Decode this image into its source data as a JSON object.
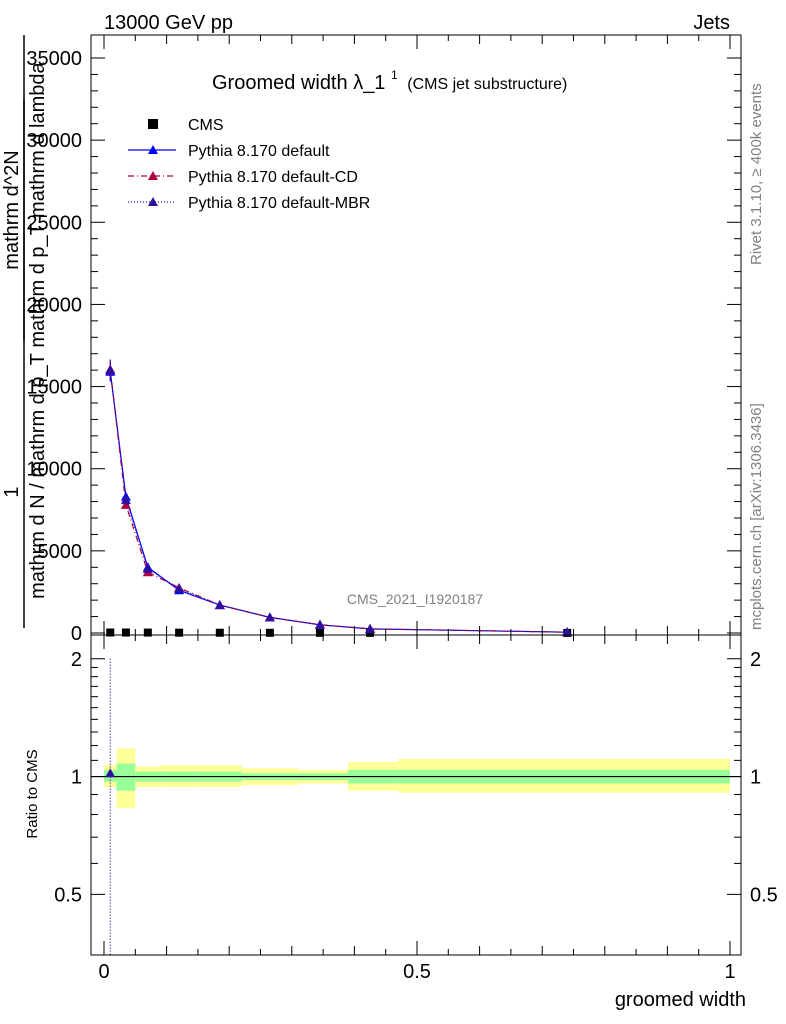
{
  "header": {
    "left": "13000 GeV pp",
    "right": "Jets"
  },
  "side": {
    "rivet": "Rivet 3.1.10, ≥ 400k events",
    "mcplots": "mcplots.cern.ch [arXiv:1306.3436]"
  },
  "chart_data": {
    "type": "scatter",
    "title_main": "Groomed width",
    "title_lambda": "λ_1",
    "title_sup": "1",
    "title_sub": "(CMS jet substructure)",
    "analysis_id": "CMS_2021_I1920187",
    "ylabel": {
      "frac_one": "1",
      "numerator": "mathrm d^2N",
      "denominator_1": "mathrm d N / mathrm d p_T",
      "denominator_2": "mathrm d p_T mathrm d lambda"
    },
    "xlabel": "groomed width",
    "xlim": [
      0,
      1
    ],
    "ylim": [
      0,
      35000
    ],
    "x_ticks": [
      "0",
      "0.5",
      "1"
    ],
    "y_ticks": [
      "0",
      "5000",
      "10000",
      "15000",
      "20000",
      "25000",
      "30000",
      "35000"
    ],
    "x": [
      0.01,
      0.035,
      0.07,
      0.12,
      0.185,
      0.265,
      0.345,
      0.425,
      0.74
    ],
    "series": [
      {
        "name": "CMS",
        "color": "#000000",
        "marker": "square",
        "style": "none",
        "values": [
          30,
          30,
          25,
          20,
          15,
          12,
          10,
          8,
          5
        ]
      },
      {
        "name": "Pythia 8.170 default",
        "color": "#0000ff",
        "marker": "triangle",
        "style": "solid",
        "values": [
          15900,
          8300,
          4000,
          2600,
          1700,
          950,
          500,
          250,
          50
        ]
      },
      {
        "name": "Pythia 8.170 default-CD",
        "color": "#b00040",
        "marker": "triangle",
        "style": "dashdot",
        "values": [
          16050,
          7800,
          3700,
          2750,
          1700,
          950,
          500,
          250,
          50
        ]
      },
      {
        "name": "Pythia 8.170 default-MBR",
        "color": "#3010a0",
        "marker": "triangle",
        "style": "dotted",
        "values": [
          16000,
          8100,
          3900,
          2700,
          1700,
          950,
          500,
          250,
          50
        ]
      }
    ],
    "ratio": {
      "ylabel": "Ratio to CMS",
      "ylim": [
        0.35,
        2.3
      ],
      "y_ticks": [
        "0.5",
        "1",
        "2"
      ],
      "bins": [
        [
          0.0,
          0.02
        ],
        [
          0.02,
          0.05
        ],
        [
          0.05,
          0.09
        ],
        [
          0.09,
          0.15
        ],
        [
          0.15,
          0.22
        ],
        [
          0.22,
          0.31
        ],
        [
          0.31,
          0.39
        ],
        [
          0.39,
          0.47
        ],
        [
          0.47,
          1.0
        ]
      ],
      "stat_band": [
        [
          0.97,
          1.04
        ],
        [
          0.92,
          1.08
        ],
        [
          0.97,
          1.03
        ],
        [
          0.97,
          1.03
        ],
        [
          0.97,
          1.03
        ],
        [
          0.98,
          1.02
        ],
        [
          0.98,
          1.02
        ],
        [
          0.96,
          1.04
        ],
        [
          0.96,
          1.04
        ]
      ],
      "sys_band": [
        [
          0.94,
          1.07
        ],
        [
          0.83,
          1.18
        ],
        [
          0.94,
          1.06
        ],
        [
          0.94,
          1.07
        ],
        [
          0.94,
          1.07
        ],
        [
          0.95,
          1.05
        ],
        [
          0.96,
          1.04
        ],
        [
          0.92,
          1.09
        ],
        [
          0.91,
          1.11
        ]
      ],
      "mc_point": {
        "x": 0.01,
        "y": 1.02,
        "err_high": 2.02
      }
    }
  }
}
